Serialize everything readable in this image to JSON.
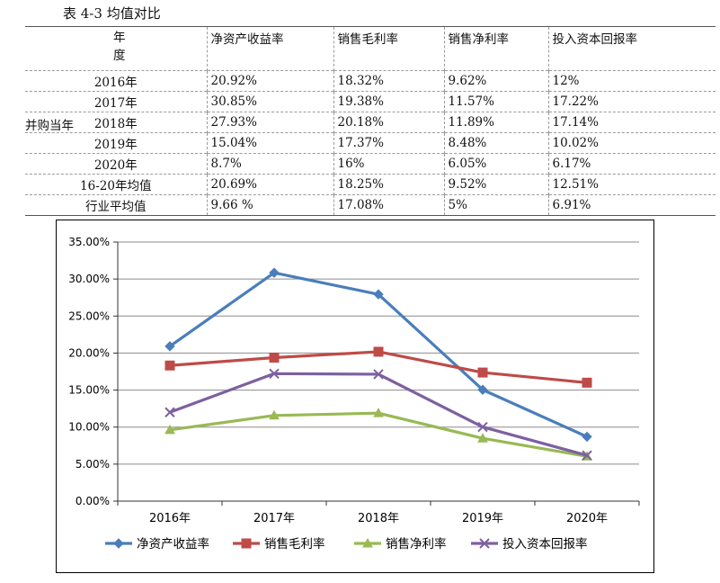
{
  "caption": "表 4-3 均值对比",
  "table": {
    "headers": [
      "年\n度",
      "净资产收益率",
      "销售毛利率",
      "销售净利率",
      "投入资本回报率"
    ],
    "group_label": "并购当年",
    "rows": [
      {
        "label": "2016年",
        "cells": [
          "20.92%",
          "18.32%",
          "9.62%",
          "12%"
        ]
      },
      {
        "label": "2017年",
        "cells": [
          "30.85%",
          "19.38%",
          "11.57%",
          "17.22%"
        ]
      },
      {
        "label": "2018年",
        "cells": [
          "27.93%",
          "20.18%",
          "11.89%",
          "17.14%"
        ]
      },
      {
        "label": "2019年",
        "cells": [
          "15.04%",
          "17.37%",
          "8.48%",
          "10.02%"
        ]
      },
      {
        "label": "2020年",
        "cells": [
          "8.7%",
          "16%",
          "6.05%",
          "6.17%"
        ]
      },
      {
        "label": "16-20年均值",
        "cells": [
          "20.69%",
          "18.25%",
          "9.52%",
          "12.51%"
        ]
      },
      {
        "label": "行业平均值",
        "cells": [
          "9.66 %",
          "17.08%",
          "5%",
          "6.91%"
        ]
      }
    ]
  },
  "chart_data": {
    "type": "line",
    "categories": [
      "2016年",
      "2017年",
      "2018年",
      "2019年",
      "2020年"
    ],
    "ylim": [
      0,
      35
    ],
    "yticks": [
      "0.00%",
      "5.00%",
      "10.00%",
      "15.00%",
      "20.00%",
      "25.00%",
      "30.00%",
      "35.00%"
    ],
    "grid": true,
    "legend_position": "bottom",
    "series": [
      {
        "name": "净资产收益率",
        "values": [
          20.92,
          30.85,
          27.93,
          15.04,
          8.7
        ],
        "color": "#4a7ebb",
        "marker": "diamond"
      },
      {
        "name": "销售毛利率",
        "values": [
          18.32,
          19.38,
          20.18,
          17.37,
          16
        ],
        "color": "#be4b48",
        "marker": "square"
      },
      {
        "name": "销售净利率",
        "values": [
          9.62,
          11.57,
          11.89,
          8.48,
          6.05
        ],
        "color": "#98b954",
        "marker": "triangle"
      },
      {
        "name": "投入资本回报率",
        "values": [
          12,
          17.22,
          17.14,
          10.02,
          6.17
        ],
        "color": "#7d60a0",
        "marker": "x"
      }
    ]
  }
}
